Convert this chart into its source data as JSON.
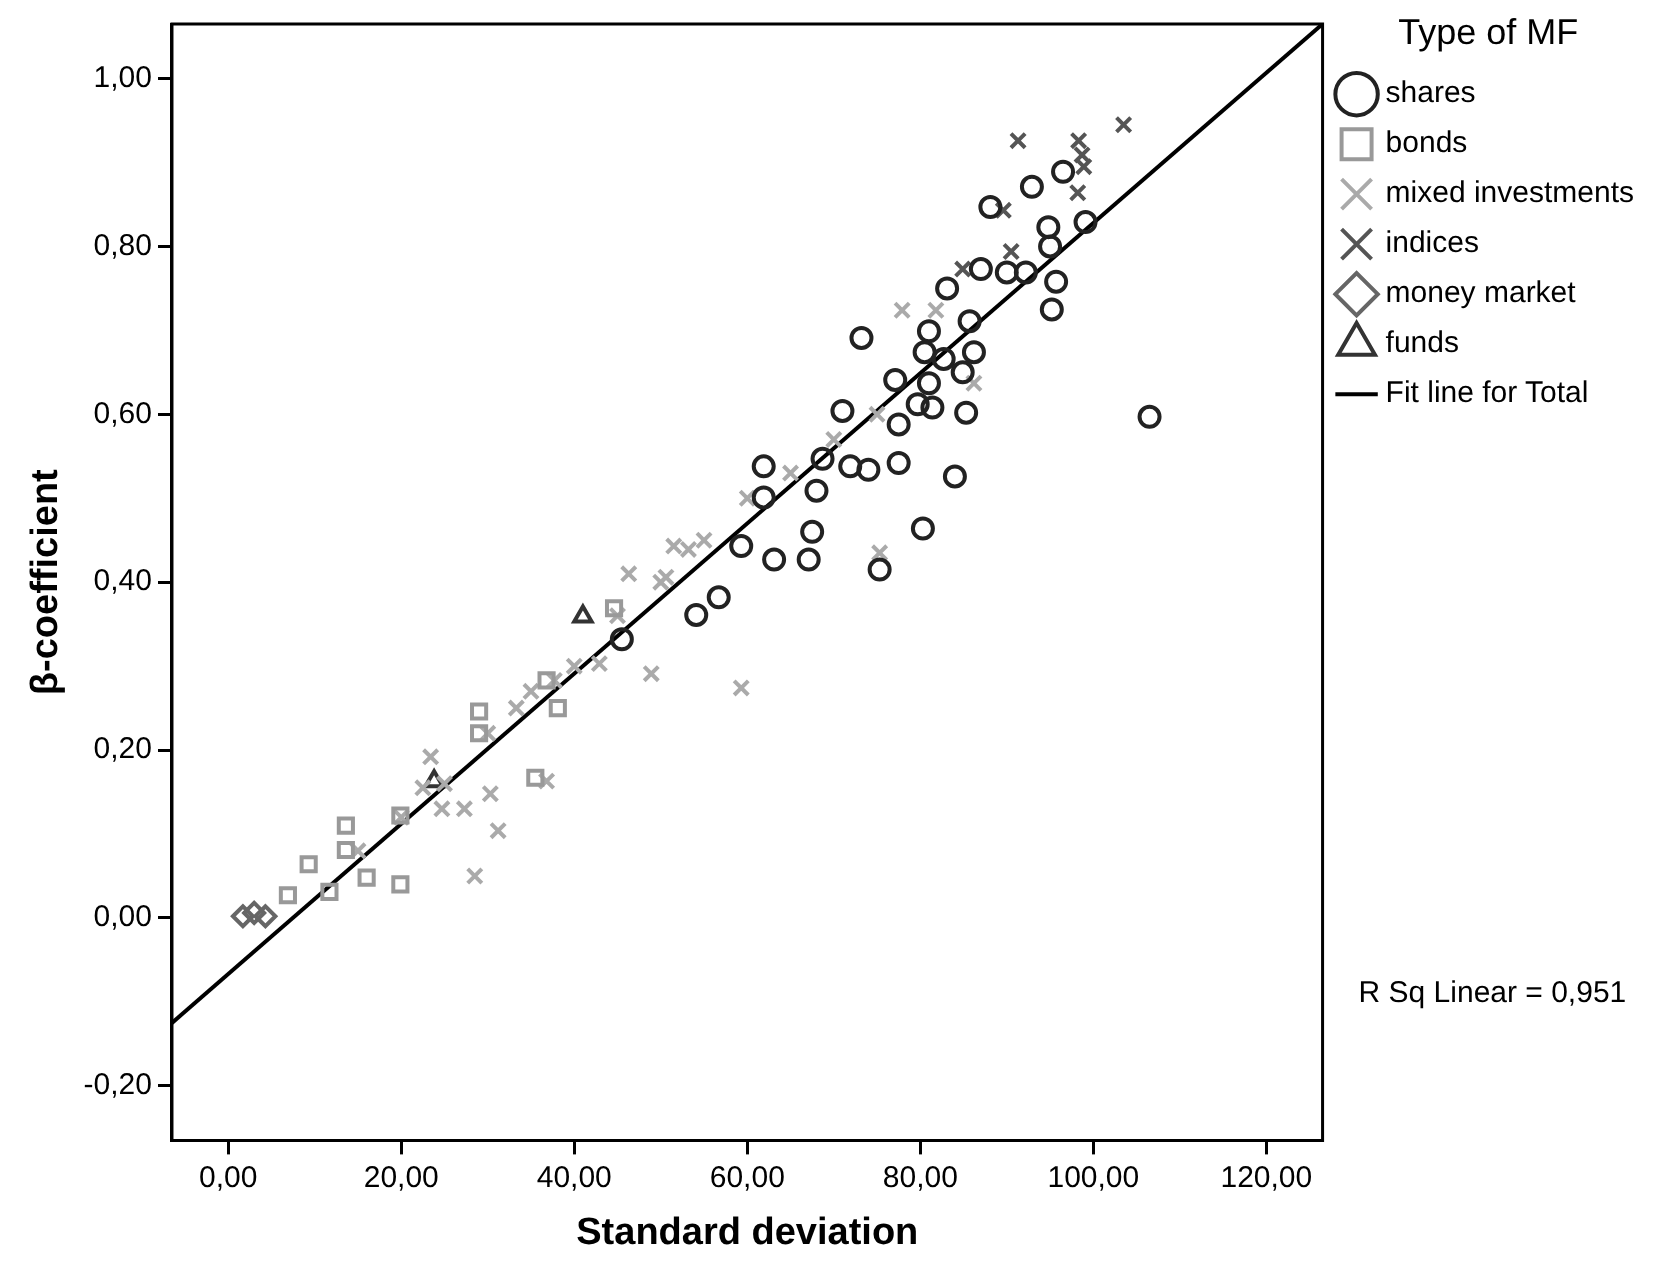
{
  "chart_data": {
    "type": "scatter",
    "xlabel": "Standard deviation",
    "ylabel": "β-coefficient",
    "legend_title": "Type of MF",
    "legend": "right",
    "grid": false,
    "xlim": [
      -6.5,
      126.5
    ],
    "xticks": [
      {
        "value": 0,
        "label": "0,00"
      },
      {
        "value": 20,
        "label": "20,00"
      },
      {
        "value": 40,
        "label": "40,00"
      },
      {
        "value": 60,
        "label": "60,00"
      },
      {
        "value": 80,
        "label": "80,00"
      },
      {
        "value": 100,
        "label": "100,00"
      },
      {
        "value": 120,
        "label": "120,00"
      }
    ],
    "ylim": [
      -0.265,
      1.065
    ],
    "yticks": [
      {
        "value": -0.2,
        "label": "-0,20"
      },
      {
        "value": 0,
        "label": "0,00"
      },
      {
        "value": 0.2,
        "label": "0,20"
      },
      {
        "value": 0.4,
        "label": "0,40"
      },
      {
        "value": 0.6,
        "label": "0,60"
      },
      {
        "value": 0.8,
        "label": "0,80"
      },
      {
        "value": 1,
        "label": "1,00"
      }
    ],
    "annotations": [
      "R Sq Linear = 0,951"
    ],
    "series": [
      {
        "name": "shares",
        "color": "#222222",
        "marker": "circle",
        "x": [
          106.5,
          96.5,
          92.9,
          88.1,
          94.8,
          99.1,
          95,
          95.7,
          95.2,
          92.2,
          90,
          87,
          83.1,
          73.2,
          85.7,
          81,
          80.5,
          82.7,
          86.2,
          84.9,
          77.1,
          81,
          71,
          81.4,
          85.3,
          79.7,
          77.5,
          68.7,
          61.9,
          71.9,
          74,
          77.5,
          84,
          68,
          61.9,
          67.5,
          80.3,
          59.3,
          63.1,
          67.1,
          75.3,
          56.7,
          54.1,
          45.5
        ],
        "values": [
          0.597,
          0.889,
          0.871,
          0.847,
          0.823,
          0.829,
          0.8,
          0.758,
          0.725,
          0.769,
          0.769,
          0.773,
          0.75,
          0.691,
          0.711,
          0.699,
          0.674,
          0.666,
          0.674,
          0.65,
          0.641,
          0.637,
          0.604,
          0.608,
          0.602,
          0.612,
          0.588,
          0.547,
          0.538,
          0.538,
          0.534,
          0.542,
          0.526,
          0.509,
          0.501,
          0.46,
          0.464,
          0.443,
          0.427,
          0.427,
          0.415,
          0.382,
          0.361,
          0.332
        ]
      },
      {
        "name": "bonds",
        "color": "#999999",
        "marker": "square",
        "x": [
          29,
          29,
          35.5,
          19.9,
          13.6,
          9.3,
          13.6,
          16,
          6.9,
          11.7,
          19.9,
          44.6,
          36.8,
          38.1
        ],
        "values": [
          0.246,
          0.22,
          0.167,
          0.04,
          0.11,
          0.064,
          0.081,
          0.048,
          0.027,
          0.031,
          0.122,
          0.369,
          0.283,
          0.25
        ]
      },
      {
        "name": "mixed investments",
        "color": "#aaaaaa",
        "marker": "cross",
        "x": [
          46.3,
          50.6,
          48.9,
          59.3,
          23.4,
          30.3,
          31.2,
          28.5,
          22.5,
          27.3,
          33.3,
          42.9,
          37.7,
          53.2,
          36.8,
          24.7,
          77.9,
          86.2,
          75.3,
          81.8,
          51.5,
          15,
          20,
          25,
          30,
          35,
          40,
          45,
          50,
          55,
          60,
          65,
          70,
          75
        ],
        "values": [
          0.41,
          0.406,
          0.291,
          0.274,
          0.192,
          0.148,
          0.104,
          0.05,
          0.155,
          0.13,
          0.25,
          0.303,
          0.283,
          0.439,
          0.163,
          0.13,
          0.724,
          0.637,
          0.435,
          0.724,
          0.443,
          0.08,
          0.12,
          0.16,
          0.22,
          0.27,
          0.3,
          0.36,
          0.4,
          0.45,
          0.5,
          0.53,
          0.57,
          0.6
        ]
      },
      {
        "name": "indices",
        "color": "#555555",
        "marker": "cross",
        "x": [
          91.3,
          98.3,
          103.5,
          98.7,
          98.2,
          89.6,
          90.5,
          84.9,
          98.9
        ],
        "values": [
          0.926,
          0.926,
          0.945,
          0.909,
          0.864,
          0.843,
          0.794,
          0.773,
          0.895
        ]
      },
      {
        "name": "money market",
        "color": "#666666",
        "marker": "diamond",
        "x": [
          1.7,
          3,
          4.3
        ],
        "values": [
          0.002,
          0.006,
          0.002
        ]
      },
      {
        "name": "funds",
        "color": "#333333",
        "marker": "triangle",
        "x": [
          41,
          23.8
        ],
        "values": [
          0.359,
          0.163
        ]
      },
      {
        "name": "Fit line for Total",
        "type": "line",
        "color": "#000000",
        "marker": "none",
        "x": [
          -6.5,
          126.5
        ],
        "values": [
          -0.125,
          1.065
        ]
      }
    ]
  }
}
